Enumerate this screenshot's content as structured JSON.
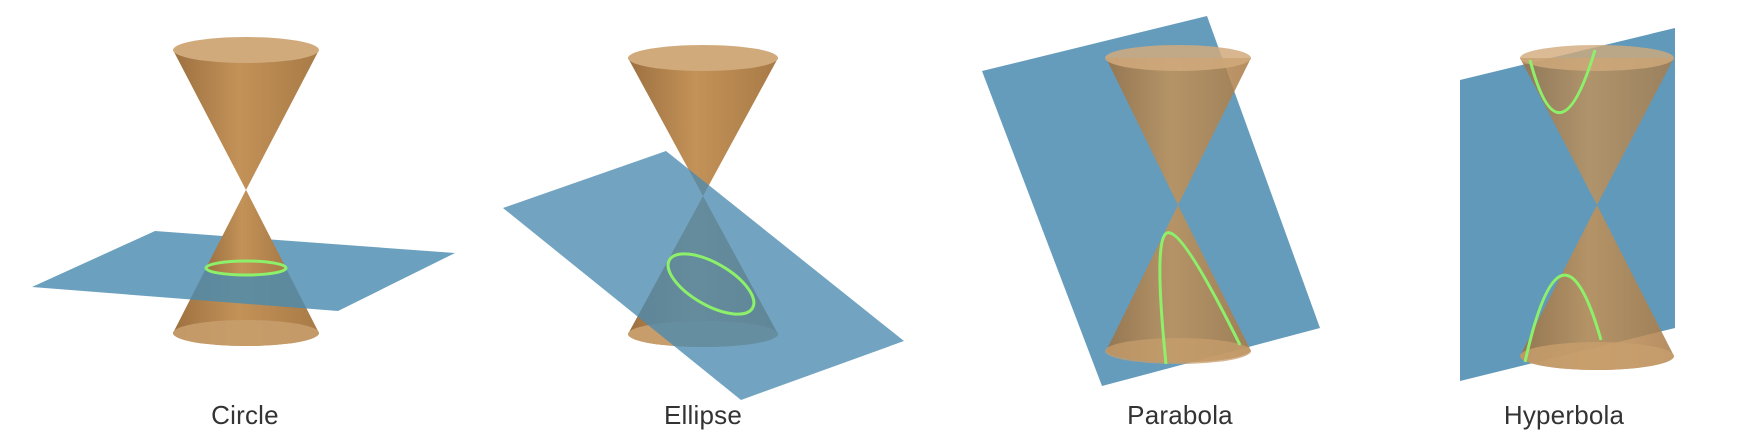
{
  "colors": {
    "cone": "#b98a52",
    "cone_rim": "#d1aa7c",
    "plane": "#4a8bb0",
    "curve": "#8df06a",
    "caption": "#333333"
  },
  "panels": [
    {
      "caption": "Circle",
      "conic": "circle"
    },
    {
      "caption": "Ellipse",
      "conic": "ellipse"
    },
    {
      "caption": "Parabola",
      "conic": "parabola"
    },
    {
      "caption": "Hyperbola",
      "conic": "hyperbola"
    }
  ]
}
